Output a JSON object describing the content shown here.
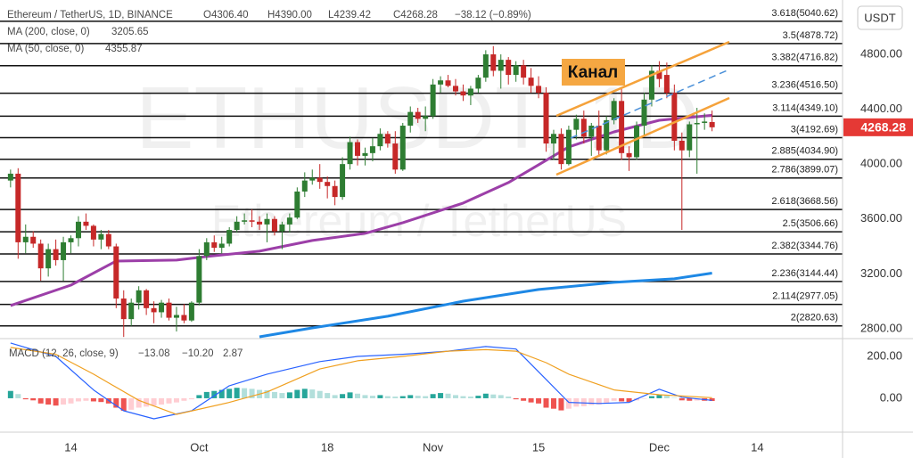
{
  "chart_data": {
    "type": "candlestick",
    "header": {
      "symbol": "Ethereum / TetherUS, 1D, BINANCE",
      "open": "O4306.40",
      "high": "H4390.00",
      "low": "L4239.42",
      "close": "C4268.28",
      "change": "−38.12 (−0.89%)"
    },
    "currency": "USDT",
    "watermark": [
      "ETHUSDT, 1D",
      "Ethereum / TetherUS"
    ],
    "annotation": "Канал",
    "candle_colors": {
      "up": "#2e7d32",
      "down": "#c62828"
    },
    "candles": [
      [
        3880,
        3960,
        3830,
        3930
      ],
      [
        3930,
        3970,
        3310,
        3430
      ],
      [
        3430,
        3560,
        3350,
        3470
      ],
      [
        3470,
        3510,
        3390,
        3420
      ],
      [
        3420,
        3450,
        3150,
        3240
      ],
      [
        3240,
        3420,
        3180,
        3380
      ],
      [
        3380,
        3450,
        3260,
        3300
      ],
      [
        3300,
        3470,
        3150,
        3430
      ],
      [
        3430,
        3480,
        3350,
        3460
      ],
      [
        3460,
        3620,
        3400,
        3580
      ],
      [
        3580,
        3640,
        3520,
        3550
      ],
      [
        3550,
        3560,
        3400,
        3450
      ],
      [
        3450,
        3520,
        3380,
        3490
      ],
      [
        3490,
        3520,
        3380,
        3400
      ],
      [
        3400,
        3420,
        2950,
        3020
      ],
      [
        3020,
        3080,
        2740,
        2870
      ],
      [
        2870,
        3020,
        2820,
        2990
      ],
      [
        2990,
        3110,
        2940,
        3080
      ],
      [
        3080,
        3090,
        2900,
        2950
      ],
      [
        2950,
        3000,
        2840,
        2920
      ],
      [
        2920,
        3010,
        2880,
        2990
      ],
      [
        2990,
        3020,
        2860,
        2880
      ],
      [
        2880,
        2960,
        2780,
        2900
      ],
      [
        2900,
        2980,
        2840,
        2860
      ],
      [
        2860,
        3000,
        2850,
        2990
      ],
      [
        2990,
        3380,
        2970,
        3330
      ],
      [
        3330,
        3460,
        3300,
        3430
      ],
      [
        3430,
        3480,
        3360,
        3390
      ],
      [
        3390,
        3470,
        3350,
        3420
      ],
      [
        3420,
        3540,
        3400,
        3520
      ],
      [
        3520,
        3620,
        3500,
        3580
      ],
      [
        3580,
        3640,
        3560,
        3590
      ],
      [
        3590,
        3670,
        3540,
        3580
      ],
      [
        3580,
        3620,
        3520,
        3560
      ],
      [
        3560,
        3640,
        3430,
        3600
      ],
      [
        3600,
        3620,
        3480,
        3510
      ],
      [
        3510,
        3580,
        3380,
        3560
      ],
      [
        3560,
        3640,
        3500,
        3610
      ],
      [
        3610,
        3830,
        3600,
        3800
      ],
      [
        3800,
        3940,
        3760,
        3880
      ],
      [
        3880,
        3960,
        3850,
        3900
      ],
      [
        3900,
        4000,
        3820,
        3870
      ],
      [
        3870,
        3910,
        3750,
        3840
      ],
      [
        3840,
        3880,
        3700,
        3760
      ],
      [
        3760,
        4050,
        3740,
        4000
      ],
      [
        4000,
        4200,
        3960,
        4160
      ],
      [
        4160,
        4180,
        3990,
        4060
      ],
      [
        4060,
        4120,
        3990,
        4080
      ],
      [
        4080,
        4190,
        4020,
        4130
      ],
      [
        4130,
        4260,
        4100,
        4220
      ],
      [
        4220,
        4240,
        4120,
        4150
      ],
      [
        4150,
        4240,
        3930,
        3960
      ],
      [
        3960,
        4300,
        3950,
        4280
      ],
      [
        4280,
        4420,
        4230,
        4380
      ],
      [
        4380,
        4410,
        4300,
        4330
      ],
      [
        4330,
        4420,
        4240,
        4350
      ],
      [
        4350,
        4620,
        4330,
        4580
      ],
      [
        4580,
        4640,
        4520,
        4610
      ],
      [
        4610,
        4650,
        4560,
        4570
      ],
      [
        4570,
        4620,
        4500,
        4530
      ],
      [
        4530,
        4580,
        4460,
        4500
      ],
      [
        4500,
        4570,
        4430,
        4550
      ],
      [
        4550,
        4650,
        4520,
        4630
      ],
      [
        4630,
        4830,
        4600,
        4800
      ],
      [
        4800,
        4860,
        4640,
        4680
      ],
      [
        4680,
        4800,
        4550,
        4760
      ],
      [
        4760,
        4780,
        4580,
        4650
      ],
      [
        4650,
        4750,
        4600,
        4720
      ],
      [
        4720,
        4760,
        4580,
        4630
      ],
      [
        4630,
        4700,
        4520,
        4570
      ],
      [
        4570,
        4640,
        4480,
        4520
      ],
      [
        4520,
        4560,
        4090,
        4150
      ],
      [
        4150,
        4250,
        4030,
        4220
      ],
      [
        4220,
        4260,
        3960,
        4000
      ],
      [
        4000,
        4280,
        3990,
        4250
      ],
      [
        4250,
        4360,
        4180,
        4330
      ],
      [
        4330,
        4390,
        4150,
        4200
      ],
      [
        4200,
        4300,
        4060,
        4280
      ],
      [
        4280,
        4390,
        4060,
        4100
      ],
      [
        4100,
        4350,
        4070,
        4320
      ],
      [
        4320,
        4480,
        4290,
        4460
      ],
      [
        4460,
        4560,
        4030,
        4080
      ],
      [
        4080,
        4130,
        3950,
        4050
      ],
      [
        4050,
        4310,
        4030,
        4280
      ],
      [
        4280,
        4520,
        4200,
        4470
      ],
      [
        4470,
        4720,
        4420,
        4680
      ],
      [
        4680,
        4750,
        4560,
        4620
      ],
      [
        4650,
        4740,
        4480,
        4520
      ],
      [
        4520,
        4580,
        4100,
        4170
      ],
      [
        4170,
        4230,
        3520,
        4100
      ],
      [
        4100,
        4310,
        4050,
        4290
      ],
      [
        4290,
        4410,
        3930,
        4300
      ],
      [
        4300,
        4370,
        4250,
        4310
      ],
      [
        4306.4,
        4390.0,
        4239.42,
        4268.28
      ]
    ],
    "ma_lines": [
      {
        "name": "MA (200, close, 0)",
        "value": 3205.65,
        "color": "#1e88e5",
        "width": 3,
        "x": [
          33,
          40,
          50,
          60,
          70,
          80,
          88,
          93
        ],
        "values": [
          2741,
          2806,
          2891,
          3001,
          3086,
          3138,
          3164,
          3205.65
        ]
      },
      {
        "name": "MA (50, close, 0)",
        "value": 4355.87,
        "color": "#9c3fa8",
        "width": 3,
        "x": [
          0,
          8,
          14,
          22,
          26,
          33,
          40,
          47,
          52,
          60,
          66,
          70,
          74,
          80,
          86,
          93
        ],
        "values": [
          2969,
          3118,
          3293,
          3300,
          3326,
          3365,
          3443,
          3495,
          3573,
          3716,
          3865,
          3995,
          4125,
          4235,
          4319,
          4355.87
        ]
      }
    ],
    "fib_levels": [
      {
        "value": 5040.62,
        "label": "3.618(5040.62)"
      },
      {
        "value": 4878.72,
        "label": "3.5(4878.72)"
      },
      {
        "value": 4716.82,
        "label": "3.382(4716.82)"
      },
      {
        "value": 4516.5,
        "label": "3.236(4516.50)"
      },
      {
        "value": 4349.1,
        "label": "3.114(4349.10)"
      },
      {
        "value": 4192.69,
        "label": "3(4192.69)"
      },
      {
        "value": 4034.9,
        "label": "2.885(4034.90)"
      },
      {
        "value": 3899.07,
        "label": "2.786(3899.07)"
      },
      {
        "value": 3668.56,
        "label": "2.618(3668.56)"
      },
      {
        "value": 3506.66,
        "label": "2.5(3506.66)"
      },
      {
        "value": 3344.76,
        "label": "2.382(3344.76)"
      },
      {
        "value": 3144.44,
        "label": "2.236(3144.44)"
      },
      {
        "value": 2977.05,
        "label": "2.114(2977.05)"
      },
      {
        "value": 2820.63,
        "label": "2(2820.63)"
      }
    ],
    "last_price": 4268.28,
    "last_price_color": "#e53935",
    "ylim": [
      2728,
      5196
    ],
    "yticks": [
      {
        "value": 4800,
        "label": "4800.00"
      },
      {
        "value": 4400,
        "label": "4400.00"
      },
      {
        "value": 4000,
        "label": "4000.00"
      },
      {
        "value": 3600,
        "label": "3600.00"
      },
      {
        "value": 3200,
        "label": "3200.00"
      },
      {
        "value": 2800,
        "label": "2800.00"
      }
    ],
    "xlim": [
      -1.4,
      110.3
    ],
    "xticks": [
      {
        "value": 8,
        "label": "14"
      },
      {
        "value": 25,
        "label": "Oct"
      },
      {
        "value": 42,
        "label": "18"
      },
      {
        "value": 56,
        "label": "Nov"
      },
      {
        "value": 70,
        "label": "15"
      },
      {
        "value": 86,
        "label": "Dec"
      },
      {
        "value": 99,
        "label": "14"
      }
    ],
    "macd": {
      "name": "MACD (12, 26, close, 9)",
      "legend": [
        {
          "value": -13.08,
          "label": "−13.08",
          "color": "#e57373"
        },
        {
          "value": -10.2,
          "label": "−10.20",
          "color": "#2962ff"
        },
        {
          "value": 2.87,
          "color": "#f0a020"
        }
      ],
      "histogram_colors": [
        "#26a69a",
        "#b2dfdb",
        "#ef5350",
        "#ffcdd2"
      ],
      "histogram": [
        35,
        20,
        -5,
        -10,
        -25,
        -30,
        -35,
        -30,
        -25,
        -15,
        -12,
        -15,
        -18,
        -25,
        -45,
        -60,
        -55,
        -45,
        -40,
        -35,
        -30,
        -25,
        -20,
        -12,
        -5,
        15,
        30,
        35,
        40,
        45,
        50,
        48,
        45,
        40,
        38,
        30,
        25,
        28,
        40,
        45,
        42,
        35,
        25,
        15,
        20,
        28,
        22,
        15,
        12,
        15,
        10,
        8,
        10,
        15,
        12,
        10,
        20,
        25,
        22,
        15,
        10,
        8,
        12,
        22,
        18,
        15,
        8,
        -5,
        -12,
        -20,
        -25,
        -45,
        -50,
        -58,
        -50,
        -40,
        -38,
        -32,
        -30,
        -22,
        -12,
        -15,
        -18,
        -10,
        -2,
        10,
        15,
        12,
        2,
        -10,
        -12,
        -11,
        -12,
        -13.08
      ],
      "lines": [
        {
          "name": "MACD",
          "color": "#2962ff",
          "x": [
            0,
            6,
            11,
            15,
            19,
            24,
            29,
            34,
            41,
            46,
            52,
            58,
            63,
            67,
            71,
            74,
            78,
            82,
            86,
            89,
            93
          ],
          "values": [
            264,
            200,
            40,
            -60,
            -98,
            -60,
            60,
            115,
            175,
            200,
            210,
            225,
            247,
            235,
            90,
            -20,
            -25,
            -20,
            43,
            5,
            -10.2
          ]
        },
        {
          "name": "Signal",
          "color": "#f0a020",
          "x": [
            0,
            6,
            11,
            17,
            22,
            29,
            34,
            41,
            46,
            52,
            58,
            63,
            67,
            71,
            74,
            80,
            86,
            93
          ],
          "values": [
            243,
            210,
            115,
            -10,
            -77,
            -20,
            30,
            140,
            179,
            200,
            225,
            232,
            225,
            170,
            115,
            40,
            17,
            2.87
          ]
        }
      ],
      "ylim": [
        -162,
        285
      ],
      "yticks": [
        {
          "value": 200,
          "label": "200.00"
        },
        {
          "value": 0,
          "label": "0.00"
        }
      ]
    }
  }
}
